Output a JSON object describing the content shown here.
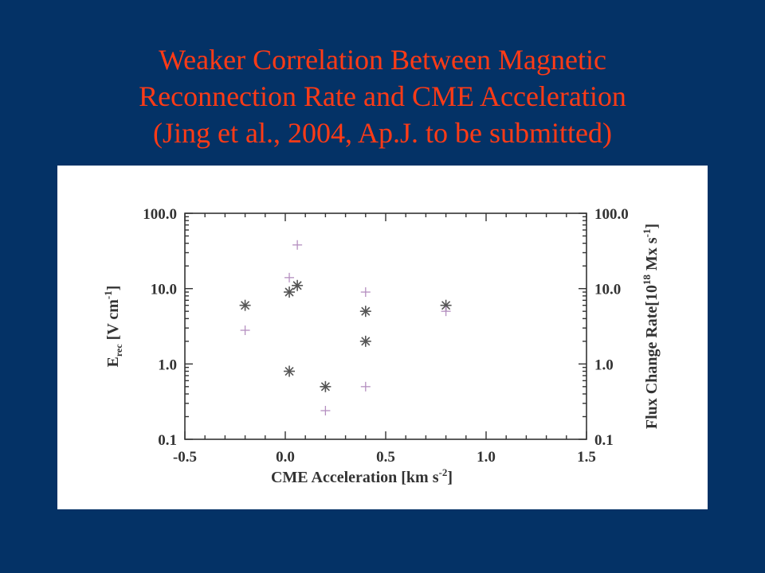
{
  "slide": {
    "title_lines": [
      "Weaker Correlation Between Magnetic",
      "Reconnection Rate and CME Acceleration",
      "(Jing et al., 2004, Ap.J. to be submitted)"
    ]
  },
  "chart_data": {
    "type": "scatter",
    "xlabel": {
      "text": "CME Acceleration [km s",
      "sup": "-2",
      "close": "]"
    },
    "ylabel_left": {
      "main": "E",
      "sub": "rec",
      "text": " [V cm",
      "sup": "-1",
      "close": "]"
    },
    "ylabel_right": {
      "text": "Flux Change Rate[10",
      "sup1": "18",
      "mid": " Mx s",
      "sup2": "-1",
      "close": "]"
    },
    "xlim": [
      -0.5,
      1.5
    ],
    "ylim": [
      0.1,
      100.0
    ],
    "y_scale": "log",
    "x_ticks": [
      -0.5,
      0.0,
      0.5,
      1.0,
      1.5
    ],
    "x_tick_labels": [
      "-0.5",
      "0.0",
      "0.5",
      "1.0",
      "1.5"
    ],
    "y_ticks": [
      0.1,
      1.0,
      10.0,
      100.0
    ],
    "y_tick_labels": [
      "0.1",
      "1.0",
      "10.0",
      "100.0"
    ],
    "series": [
      {
        "marker": "asterisk",
        "color": "#555555",
        "points": [
          {
            "x": -0.2,
            "y": 6.0
          },
          {
            "x": 0.02,
            "y": 9.0
          },
          {
            "x": 0.06,
            "y": 11.0
          },
          {
            "x": 0.02,
            "y": 0.8
          },
          {
            "x": 0.2,
            "y": 0.5
          },
          {
            "x": 0.4,
            "y": 5.0
          },
          {
            "x": 0.4,
            "y": 2.0
          },
          {
            "x": 0.8,
            "y": 6.0
          }
        ]
      },
      {
        "marker": "plus",
        "color": "#b58fc0",
        "points": [
          {
            "x": -0.2,
            "y": 2.8
          },
          {
            "x": 0.02,
            "y": 14.0
          },
          {
            "x": 0.06,
            "y": 38.0
          },
          {
            "x": 0.2,
            "y": 0.24
          },
          {
            "x": 0.4,
            "y": 9.0
          },
          {
            "x": 0.4,
            "y": 0.5
          },
          {
            "x": 0.8,
            "y": 5.0
          }
        ]
      }
    ]
  }
}
